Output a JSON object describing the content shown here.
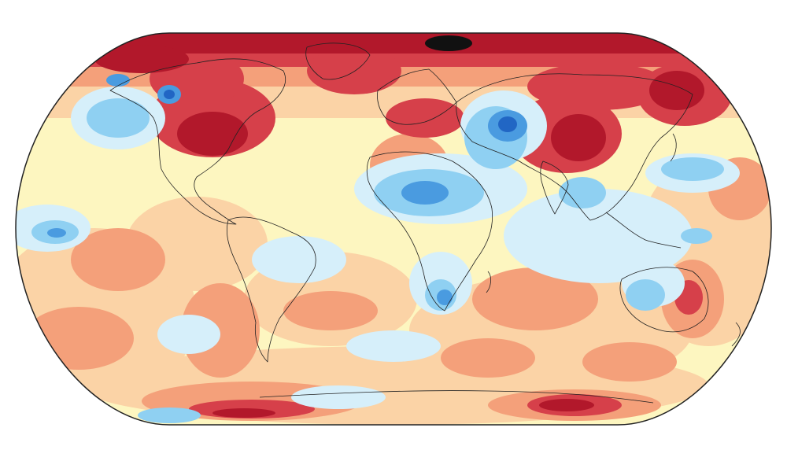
{
  "map": {
    "projection": "equal-earth",
    "palette": {
      "ocean_base": "#fdf6c0",
      "deep_red": "#b2182b",
      "red": "#d6404a",
      "orange": "#f4a07a",
      "light_orange": "#fbd3a6",
      "pale_yellow": "#fdf6c0",
      "pale_blue": "#d6effa",
      "light_blue": "#8fd0f2",
      "blue": "#4a9be0",
      "dark_blue": "#2166c4",
      "extreme": "#111111",
      "border": "#222222"
    }
  }
}
